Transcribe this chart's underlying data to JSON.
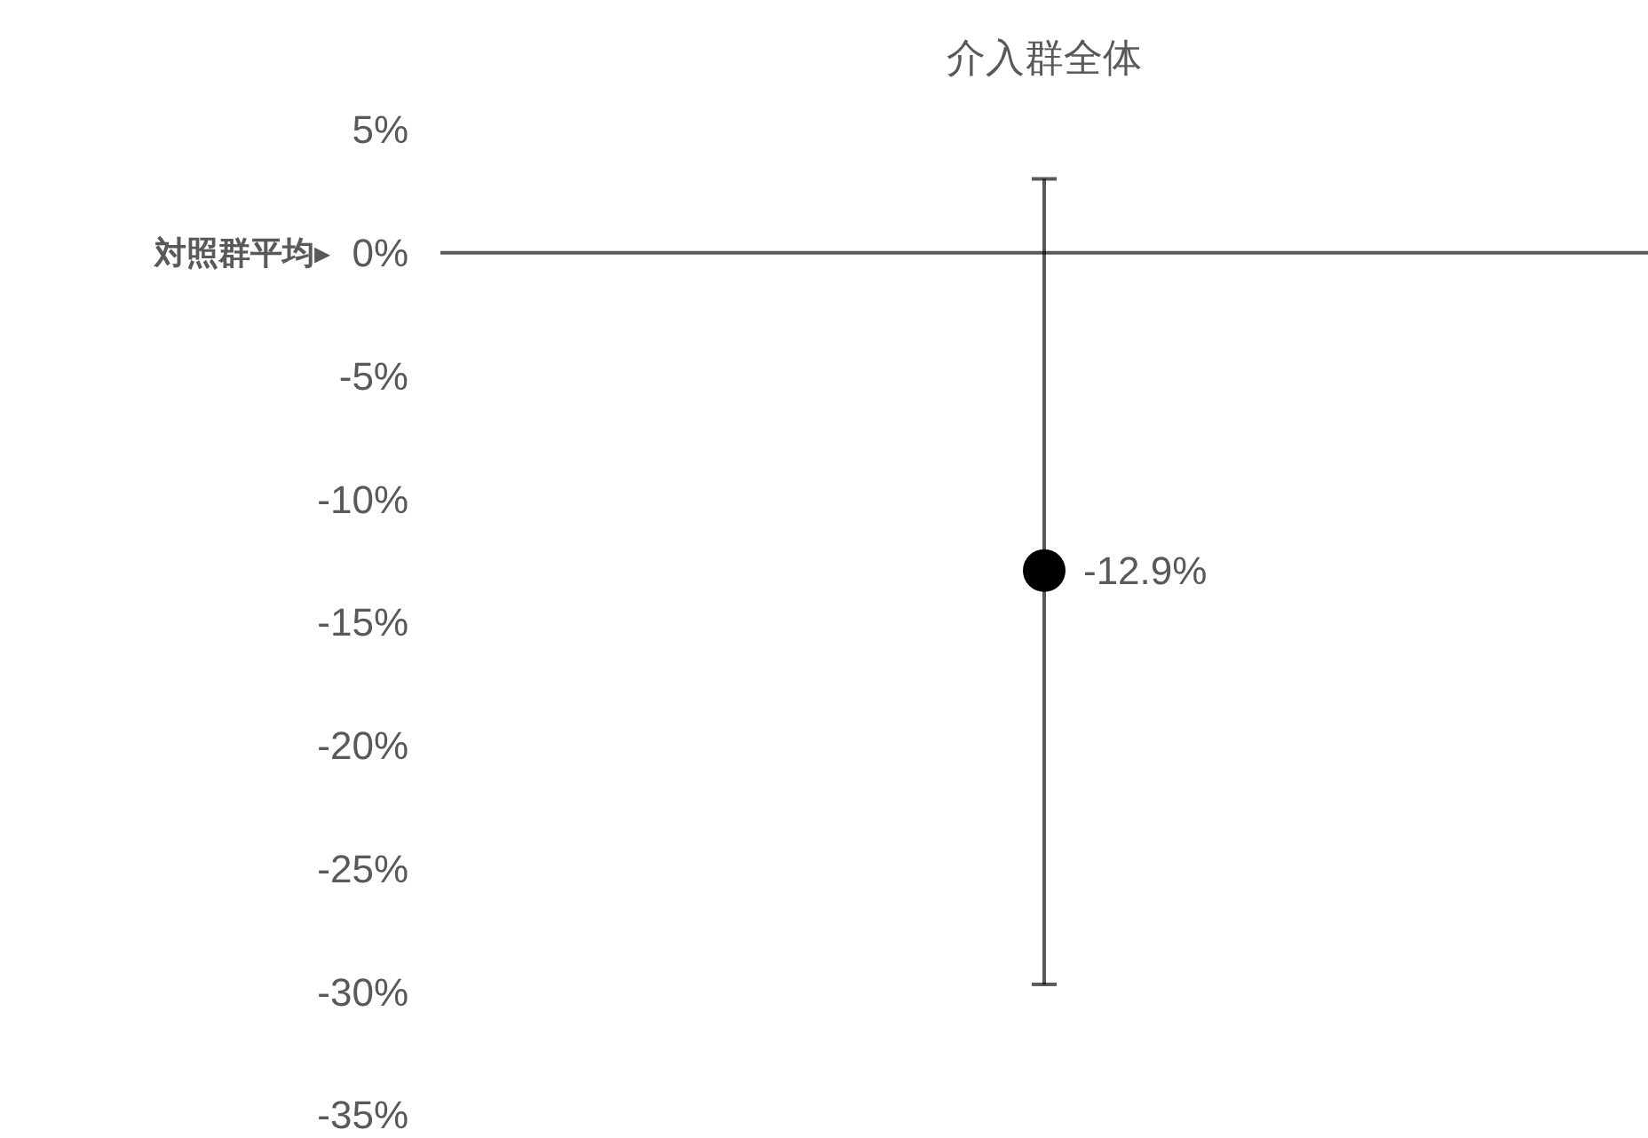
{
  "chart_data": {
    "type": "scatter",
    "categories": [
      "介入群全体"
    ],
    "values": [
      -12.9
    ],
    "errors": [
      [
        -29.7,
        3.0
      ]
    ],
    "value_labels": [
      "-12.9%"
    ],
    "color": "#000000",
    "ylim": [
      -35,
      5
    ],
    "yticks": [
      {
        "value": 5,
        "label": "5%"
      },
      {
        "value": 0,
        "label": "0%"
      },
      {
        "value": -5,
        "label": "-5%"
      },
      {
        "value": -10,
        "label": "-10%"
      },
      {
        "value": -15,
        "label": "-15%"
      },
      {
        "value": -20,
        "label": "-20%"
      },
      {
        "value": -25,
        "label": "-25%"
      },
      {
        "value": -30,
        "label": "-30%"
      },
      {
        "value": -35,
        "label": "-35%"
      }
    ],
    "ref_lines": [
      {
        "axis": "y",
        "value": 0,
        "label": "対照群平均▸",
        "color": "#595959"
      }
    ],
    "marker": "circle"
  }
}
